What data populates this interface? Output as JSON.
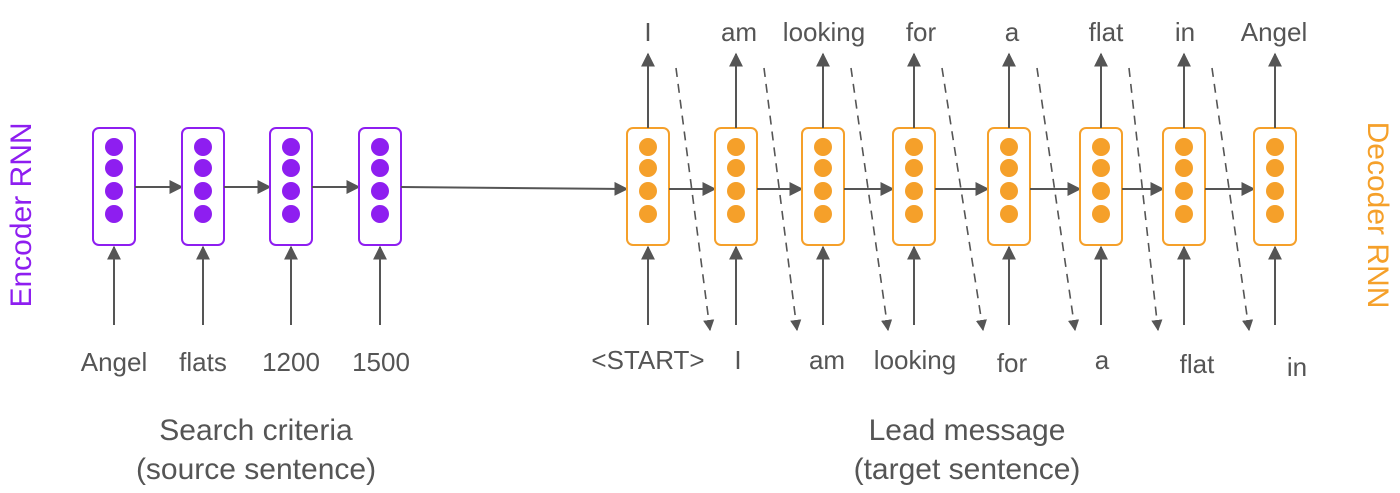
{
  "colors": {
    "encoder": "#8e1ef0",
    "decoder": "#f5a02a",
    "text": "#555555",
    "arrow": "#555555"
  },
  "side_labels": {
    "encoder": "Encoder RNN",
    "decoder": "Decoder RNN"
  },
  "encoder": {
    "inputs": [
      "Angel",
      "flats",
      "1200",
      "1500"
    ],
    "caption_line1": "Search criteria",
    "caption_line2": "(source sentence)"
  },
  "decoder": {
    "inputs": [
      "<START>",
      "I",
      "am",
      "looking",
      "for",
      "a",
      "flat",
      "in"
    ],
    "outputs": [
      "I",
      "am",
      "looking",
      "for",
      "a",
      "flat",
      "in",
      "Angel"
    ],
    "caption_line1": "Lead message",
    "caption_line2": "(target sentence)"
  }
}
